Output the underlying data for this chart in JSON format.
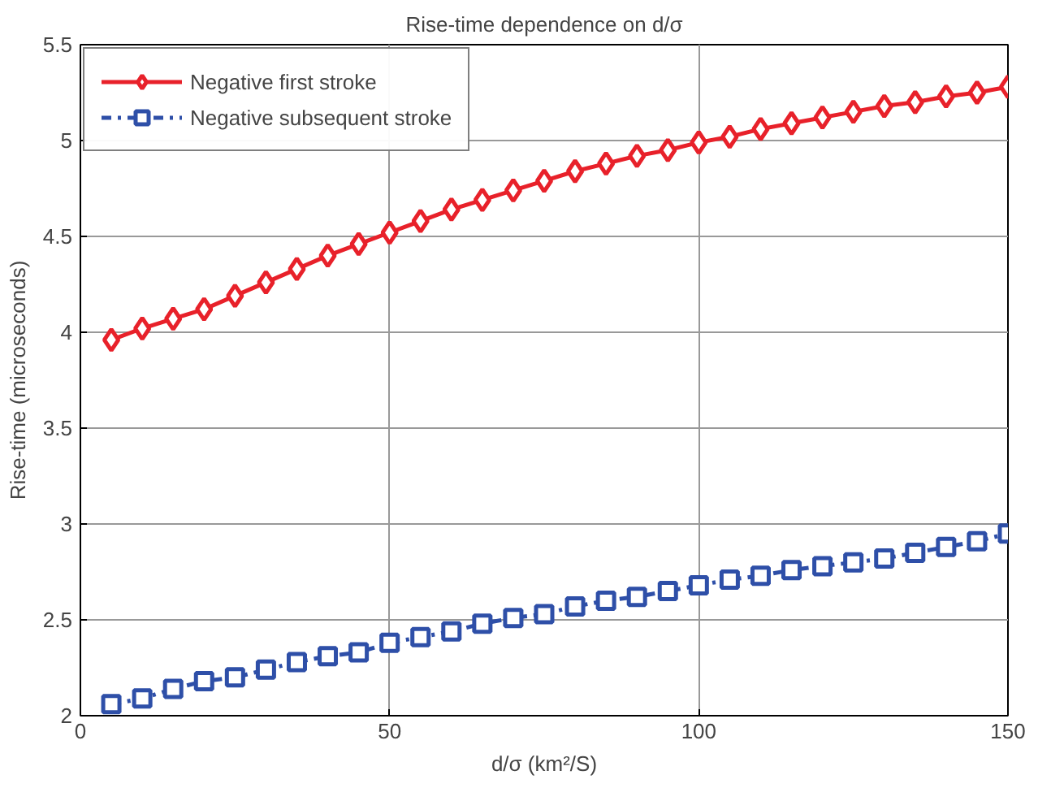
{
  "chart_data": {
    "type": "line",
    "title": "Rise-time dependence on d/σ",
    "xlabel": "d/σ (km²/S)",
    "ylabel": "Rise-time (microseconds)",
    "x": [
      5,
      10,
      15,
      20,
      25,
      30,
      35,
      40,
      45,
      50,
      55,
      60,
      65,
      70,
      75,
      80,
      85,
      90,
      95,
      100,
      105,
      110,
      115,
      120,
      125,
      130,
      135,
      140,
      145,
      150
    ],
    "series": [
      {
        "name": "Negative first stroke",
        "color": "#e8212a",
        "marker": "diamond",
        "line_style": "solid",
        "values": [
          3.96,
          4.02,
          4.07,
          4.12,
          4.19,
          4.26,
          4.33,
          4.4,
          4.46,
          4.52,
          4.58,
          4.64,
          4.69,
          4.74,
          4.79,
          4.84,
          4.88,
          4.92,
          4.95,
          4.99,
          5.02,
          5.06,
          5.09,
          5.12,
          5.15,
          5.18,
          5.2,
          5.23,
          5.25,
          5.28
        ]
      },
      {
        "name": "Negative subsequent stroke",
        "color": "#2e4fa8",
        "marker": "square",
        "line_style": "dashdot",
        "values": [
          2.06,
          2.09,
          2.14,
          2.18,
          2.2,
          2.24,
          2.28,
          2.31,
          2.33,
          2.38,
          2.41,
          2.44,
          2.48,
          2.51,
          2.53,
          2.57,
          2.6,
          2.62,
          2.65,
          2.68,
          2.71,
          2.73,
          2.76,
          2.78,
          2.8,
          2.82,
          2.85,
          2.88,
          2.91,
          2.95
        ]
      }
    ],
    "xlim": [
      0,
      150
    ],
    "xticks": [
      0,
      50,
      100,
      150
    ],
    "ylim": [
      2,
      5.5
    ],
    "yticks": [
      2,
      2.5,
      3,
      3.5,
      4,
      4.5,
      5,
      5.5
    ],
    "grid": true,
    "legend": "top left"
  }
}
